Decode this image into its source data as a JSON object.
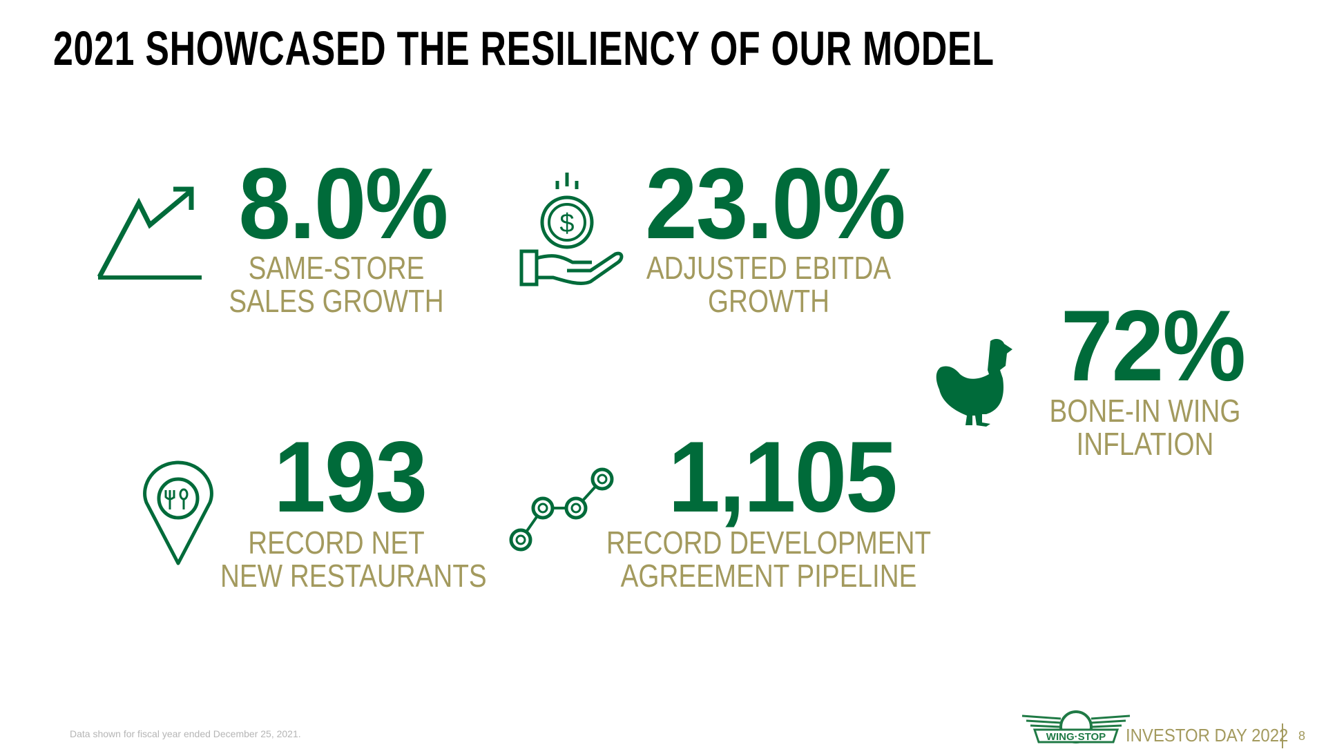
{
  "title": "2021 SHOWCASED THE RESILIENCY OF OUR MODEL",
  "colors": {
    "accent_green": "#006b3a",
    "label_gold": "#a39a5e"
  },
  "stats": [
    {
      "value": "8.0%",
      "label_line1": "SAME-STORE",
      "label_line2": "SALES GROWTH",
      "icon": "trending-up-chart-icon"
    },
    {
      "value": "23.0%",
      "label_line1": "ADJUSTED EBITDA",
      "label_line2": "GROWTH",
      "icon": "hand-holding-dollar-coin-icon"
    },
    {
      "value": "72%",
      "label_line1": "BONE-IN WING",
      "label_line2": "INFLATION",
      "icon": "chicken-icon"
    },
    {
      "value": "193",
      "label_line1": "RECORD NET",
      "label_line2": "NEW RESTAURANTS",
      "icon": "restaurant-location-pin-icon"
    },
    {
      "value": "1,105",
      "label_line1": "RECORD DEVELOPMENT",
      "label_line2": "AGREEMENT PIPELINE",
      "icon": "connected-nodes-pipeline-icon"
    }
  ],
  "footer": {
    "note": "Data shown for fiscal year ended December 25, 2021.",
    "logo_text": "WING STOP",
    "event": "INVESTOR DAY 2022",
    "page_number": "8"
  }
}
